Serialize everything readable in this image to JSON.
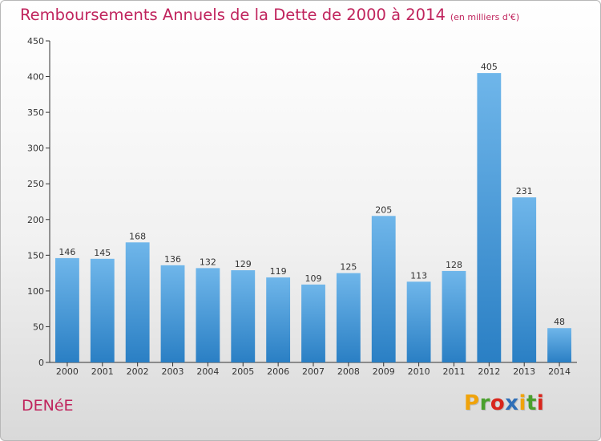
{
  "title": "Remboursements Annuels de la Dette de 2000 à 2014",
  "subtitle": "(en milliers d'€)",
  "commune": "DENéE",
  "logo": {
    "letters": [
      "P",
      "r",
      "o",
      "x",
      "i",
      "t",
      "i"
    ],
    "colors": [
      "#f0a30a",
      "#4aa02c",
      "#d9261c",
      "#2f6fb8",
      "#f0a30a",
      "#4aa02c",
      "#d9261c"
    ]
  },
  "colors": {
    "bar_top": "#6fb6ea",
    "bar_bottom": "#2a7fc4",
    "title": "#c0245d"
  },
  "chart_data": {
    "type": "bar",
    "title": "Remboursements Annuels de la Dette de 2000 à 2014",
    "xlabel": "",
    "ylabel": "",
    "ylim": [
      0,
      450
    ],
    "yticks": [
      0,
      50,
      100,
      150,
      200,
      250,
      300,
      350,
      400,
      450
    ],
    "grid": false,
    "categories": [
      "2000",
      "2001",
      "2002",
      "2003",
      "2004",
      "2005",
      "2006",
      "2007",
      "2008",
      "2009",
      "2010",
      "2011",
      "2012",
      "2013",
      "2014"
    ],
    "values": [
      146,
      145,
      168,
      136,
      132,
      129,
      119,
      109,
      125,
      205,
      113,
      128,
      405,
      231,
      48
    ]
  }
}
